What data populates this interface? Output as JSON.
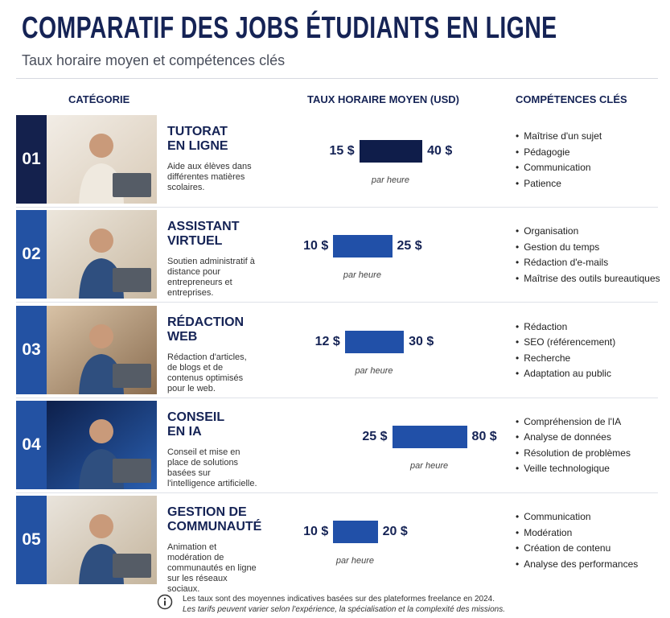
{
  "header": {
    "title": "COMPARATIF DES JOBS ÉTUDIANTS EN LIGNE",
    "subtitle": "Taux horaire moyen et compétences clés"
  },
  "columns": [
    "CATÉGORIE",
    "TAUX HORAIRE MOYEN (USD)",
    "COMPÉTENCES CLÉS"
  ],
  "rows": [
    {
      "number": "01",
      "title": [
        "TUTORAT",
        "EN LIGNE"
      ],
      "description": "Aide aux élèves dans différentes matières scolaires.",
      "min": 15,
      "max": 40,
      "min_label": "15 $",
      "max_label": "40 $",
      "unit": "par heure",
      "skills": [
        "Maîtrise d'un sujet",
        "Pédagogie",
        "Communication",
        "Patience"
      ]
    },
    {
      "number": "02",
      "title": [
        "ASSISTANT",
        "VIRTUEL"
      ],
      "description": "Soutien administratif à distance pour entrepreneurs et entreprises.",
      "min": 10,
      "max": 25,
      "min_label": "10 $",
      "max_label": "25 $",
      "unit": "par heure",
      "skills": [
        "Organisation",
        "Gestion du temps",
        "Rédaction d'e-mails",
        "Maîtrise des outils bureautiques"
      ]
    },
    {
      "number": "03",
      "title": [
        "RÉDACTION",
        "WEB"
      ],
      "description": "Rédaction d'articles, de blogs et de contenus optimisés pour le web.",
      "min": 12,
      "max": 30,
      "min_label": "12 $",
      "max_label": "30 $",
      "unit": "par heure",
      "skills": [
        "Rédaction",
        "SEO (référencement)",
        "Recherche",
        "Adaptation au public"
      ]
    },
    {
      "number": "04",
      "title": [
        "CONSEIL",
        "EN IA"
      ],
      "description": "Conseil et mise en place de solutions basées sur l'intelligence artificielle.",
      "min": 25,
      "max": 80,
      "min_label": "25 $",
      "max_label": "80 $",
      "unit": "par heure",
      "skills": [
        "Compréhension de l'IA",
        "Analyse de données",
        "Résolution de problèmes",
        "Veille technologique"
      ]
    },
    {
      "number": "05",
      "title": [
        "GESTION DE",
        "COMMUNAUTÉ"
      ],
      "description": "Animation et modération de communautés en ligne sur les réseaux sociaux.",
      "min": 10,
      "max": 20,
      "min_label": "10 $",
      "max_label": "20 $",
      "unit": "par heure",
      "skills": [
        "Communication",
        "Modération",
        "Création de contenu",
        "Analyse des performances"
      ]
    }
  ],
  "footer": [
    "Les taux sont des moyennes indicatives basées sur des plateformes freelance en 2024.",
    "Les tarifs peuvent varier selon l'expérience, la spécialisation et la complexité des missions."
  ]
}
